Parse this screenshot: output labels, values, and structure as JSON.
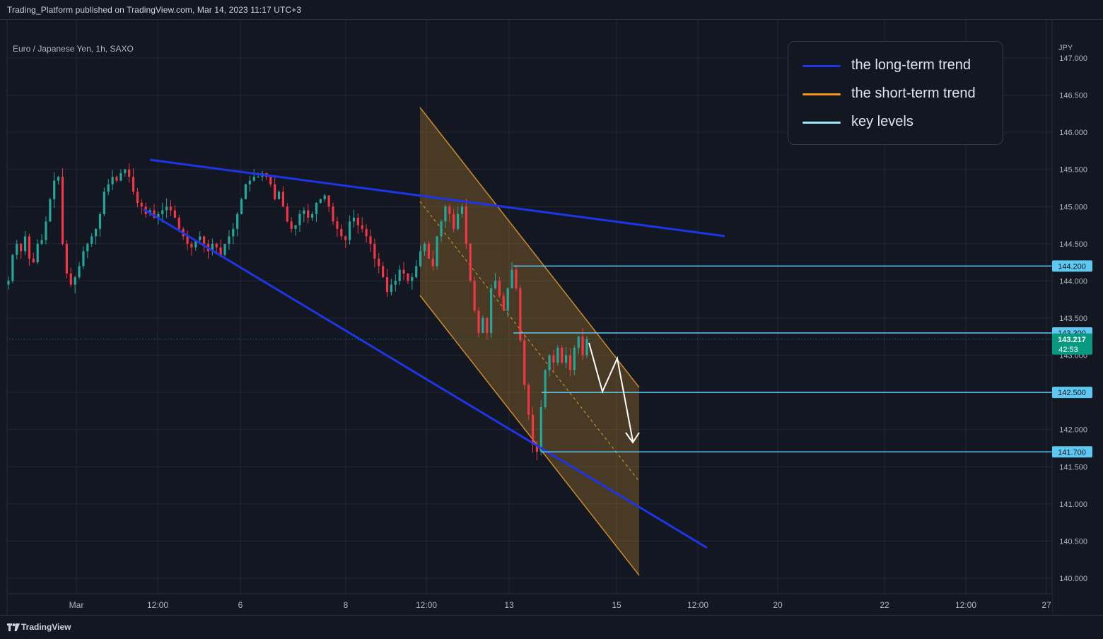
{
  "header": {
    "text": "Trading_Platform published on TradingView.com, Mar 14, 2023 11:17 UTC+3"
  },
  "instrument": "Euro / Japanese Yen, 1h, SAXO",
  "currency": "JPY",
  "footer": {
    "brand": "TradingView",
    "logo_icon": "tradingview-logo-icon"
  },
  "legend": [
    {
      "label": "the long-term trend",
      "color": "#1e35e6"
    },
    {
      "label": "the short-term trend",
      "color": "#f7931a"
    },
    {
      "label": "key levels",
      "color": "#9fe8f5"
    }
  ],
  "colors": {
    "background": "#131722",
    "grid": "#242733",
    "up_candle": "#26a69a",
    "down_candle": "#f23645",
    "long_trend": "#1e35e6",
    "short_trend": "#c88a2e",
    "key_level": "#5ec8f0",
    "price_badge": "#089981"
  },
  "chart_data": {
    "type": "candlestick",
    "symbol": "EURJPY",
    "timeframe": "1h",
    "y_ticks": [
      "147.000",
      "146.500",
      "146.000",
      "145.500",
      "145.000",
      "144.500",
      "144.000",
      "143.500",
      "143.000",
      "142.500",
      "142.000",
      "141.500",
      "141.000",
      "140.500",
      "140.000"
    ],
    "ylim": [
      139.88,
      147.4
    ],
    "x_ticks": [
      "Mar",
      "12:00",
      "6",
      "8",
      "12:00",
      "13",
      "15",
      "12:00",
      "20",
      "22",
      "12:00",
      "27"
    ],
    "key_levels": [
      144.2,
      143.3,
      142.5,
      141.7
    ],
    "key_level_labels": [
      "144.200",
      "143.300",
      "142.500",
      "141.700"
    ],
    "current_price": {
      "value": 143.217,
      "label": "143.217",
      "countdown": "42:53"
    },
    "close_path": [
      144.0,
      144.35,
      144.5,
      144.4,
      144.6,
      144.3,
      144.25,
      144.5,
      144.55,
      144.8,
      145.1,
      145.35,
      145.4,
      144.5,
      144.1,
      143.95,
      144.05,
      144.2,
      144.4,
      144.5,
      144.6,
      144.7,
      144.9,
      145.2,
      145.3,
      145.4,
      145.35,
      145.45,
      145.5,
      145.4,
      145.2,
      145.05,
      145.0,
      144.9,
      144.95,
      144.85,
      144.9,
      144.95,
      145.0,
      144.95,
      144.85,
      144.7,
      144.6,
      144.5,
      144.45,
      144.55,
      144.6,
      144.5,
      144.4,
      144.5,
      144.45,
      144.35,
      144.5,
      144.6,
      144.7,
      144.9,
      145.1,
      145.3,
      145.35,
      145.4,
      145.4,
      145.45,
      145.4,
      145.3,
      145.1,
      145.2,
      145.0,
      144.8,
      144.7,
      144.75,
      144.9,
      144.95,
      144.85,
      144.9,
      145.05,
      145.1,
      145.15,
      145.0,
      144.8,
      144.7,
      144.6,
      144.55,
      144.8,
      144.85,
      144.75,
      144.7,
      144.6,
      144.5,
      144.3,
      144.2,
      144.05,
      143.85,
      143.95,
      144.0,
      144.15,
      144.1,
      144.0,
      144.05,
      144.2,
      144.4,
      144.5,
      144.3,
      144.2,
      144.6,
      144.8,
      145.0,
      144.9,
      144.7,
      144.9,
      145.0,
      144.5,
      144.0,
      143.6,
      143.3,
      143.5,
      143.3,
      143.9,
      144.0,
      143.8,
      143.6,
      143.9,
      144.15,
      143.9,
      143.2,
      142.6,
      142.2,
      141.8,
      141.7,
      142.3,
      142.8,
      143.0,
      142.9,
      143.1,
      142.9,
      143.0,
      142.8,
      143.1,
      143.25,
      143.0,
      143.217
    ]
  }
}
